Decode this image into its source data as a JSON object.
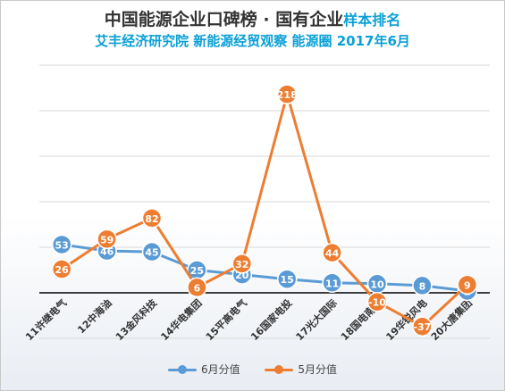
{
  "title": {
    "main": "中国能源企业口碑榜 · 国有企业",
    "accent": "样本排名"
  },
  "subtitle": "艾丰经济研究院 新能源经贸观察 能源圈 2017年6月",
  "colors": {
    "june": "#5b9bd5",
    "may": "#ed7d31",
    "grid": "#d9d9d9",
    "zero_axis": "#000000"
  },
  "chart_data": {
    "type": "line",
    "categories": [
      "11许继电气",
      "12中海油",
      "13金风科技",
      "14华电集团",
      "15平高电气",
      "16国家电投",
      "17光大国际",
      "18国电南自",
      "19华锐风电",
      "20大唐集团"
    ],
    "series": [
      {
        "name": "6月分值",
        "values": [
          53,
          46,
          45,
          25,
          20,
          15,
          11,
          10,
          8,
          2
        ],
        "labels": [
          "53",
          "46",
          "45",
          "25",
          "20",
          "15",
          "11",
          "10",
          "8",
          "2"
        ]
      },
      {
        "name": "5月分值",
        "values": [
          26,
          59,
          82,
          6,
          32,
          218,
          44,
          -10,
          -37,
          9
        ],
        "labels": [
          "26",
          "59",
          "82",
          "6",
          "32",
          "218",
          "44",
          "-10",
          "-37",
          "9"
        ]
      }
    ],
    "ylim": [
      -50,
      250
    ],
    "grid": true,
    "legend_position": "bottom"
  }
}
